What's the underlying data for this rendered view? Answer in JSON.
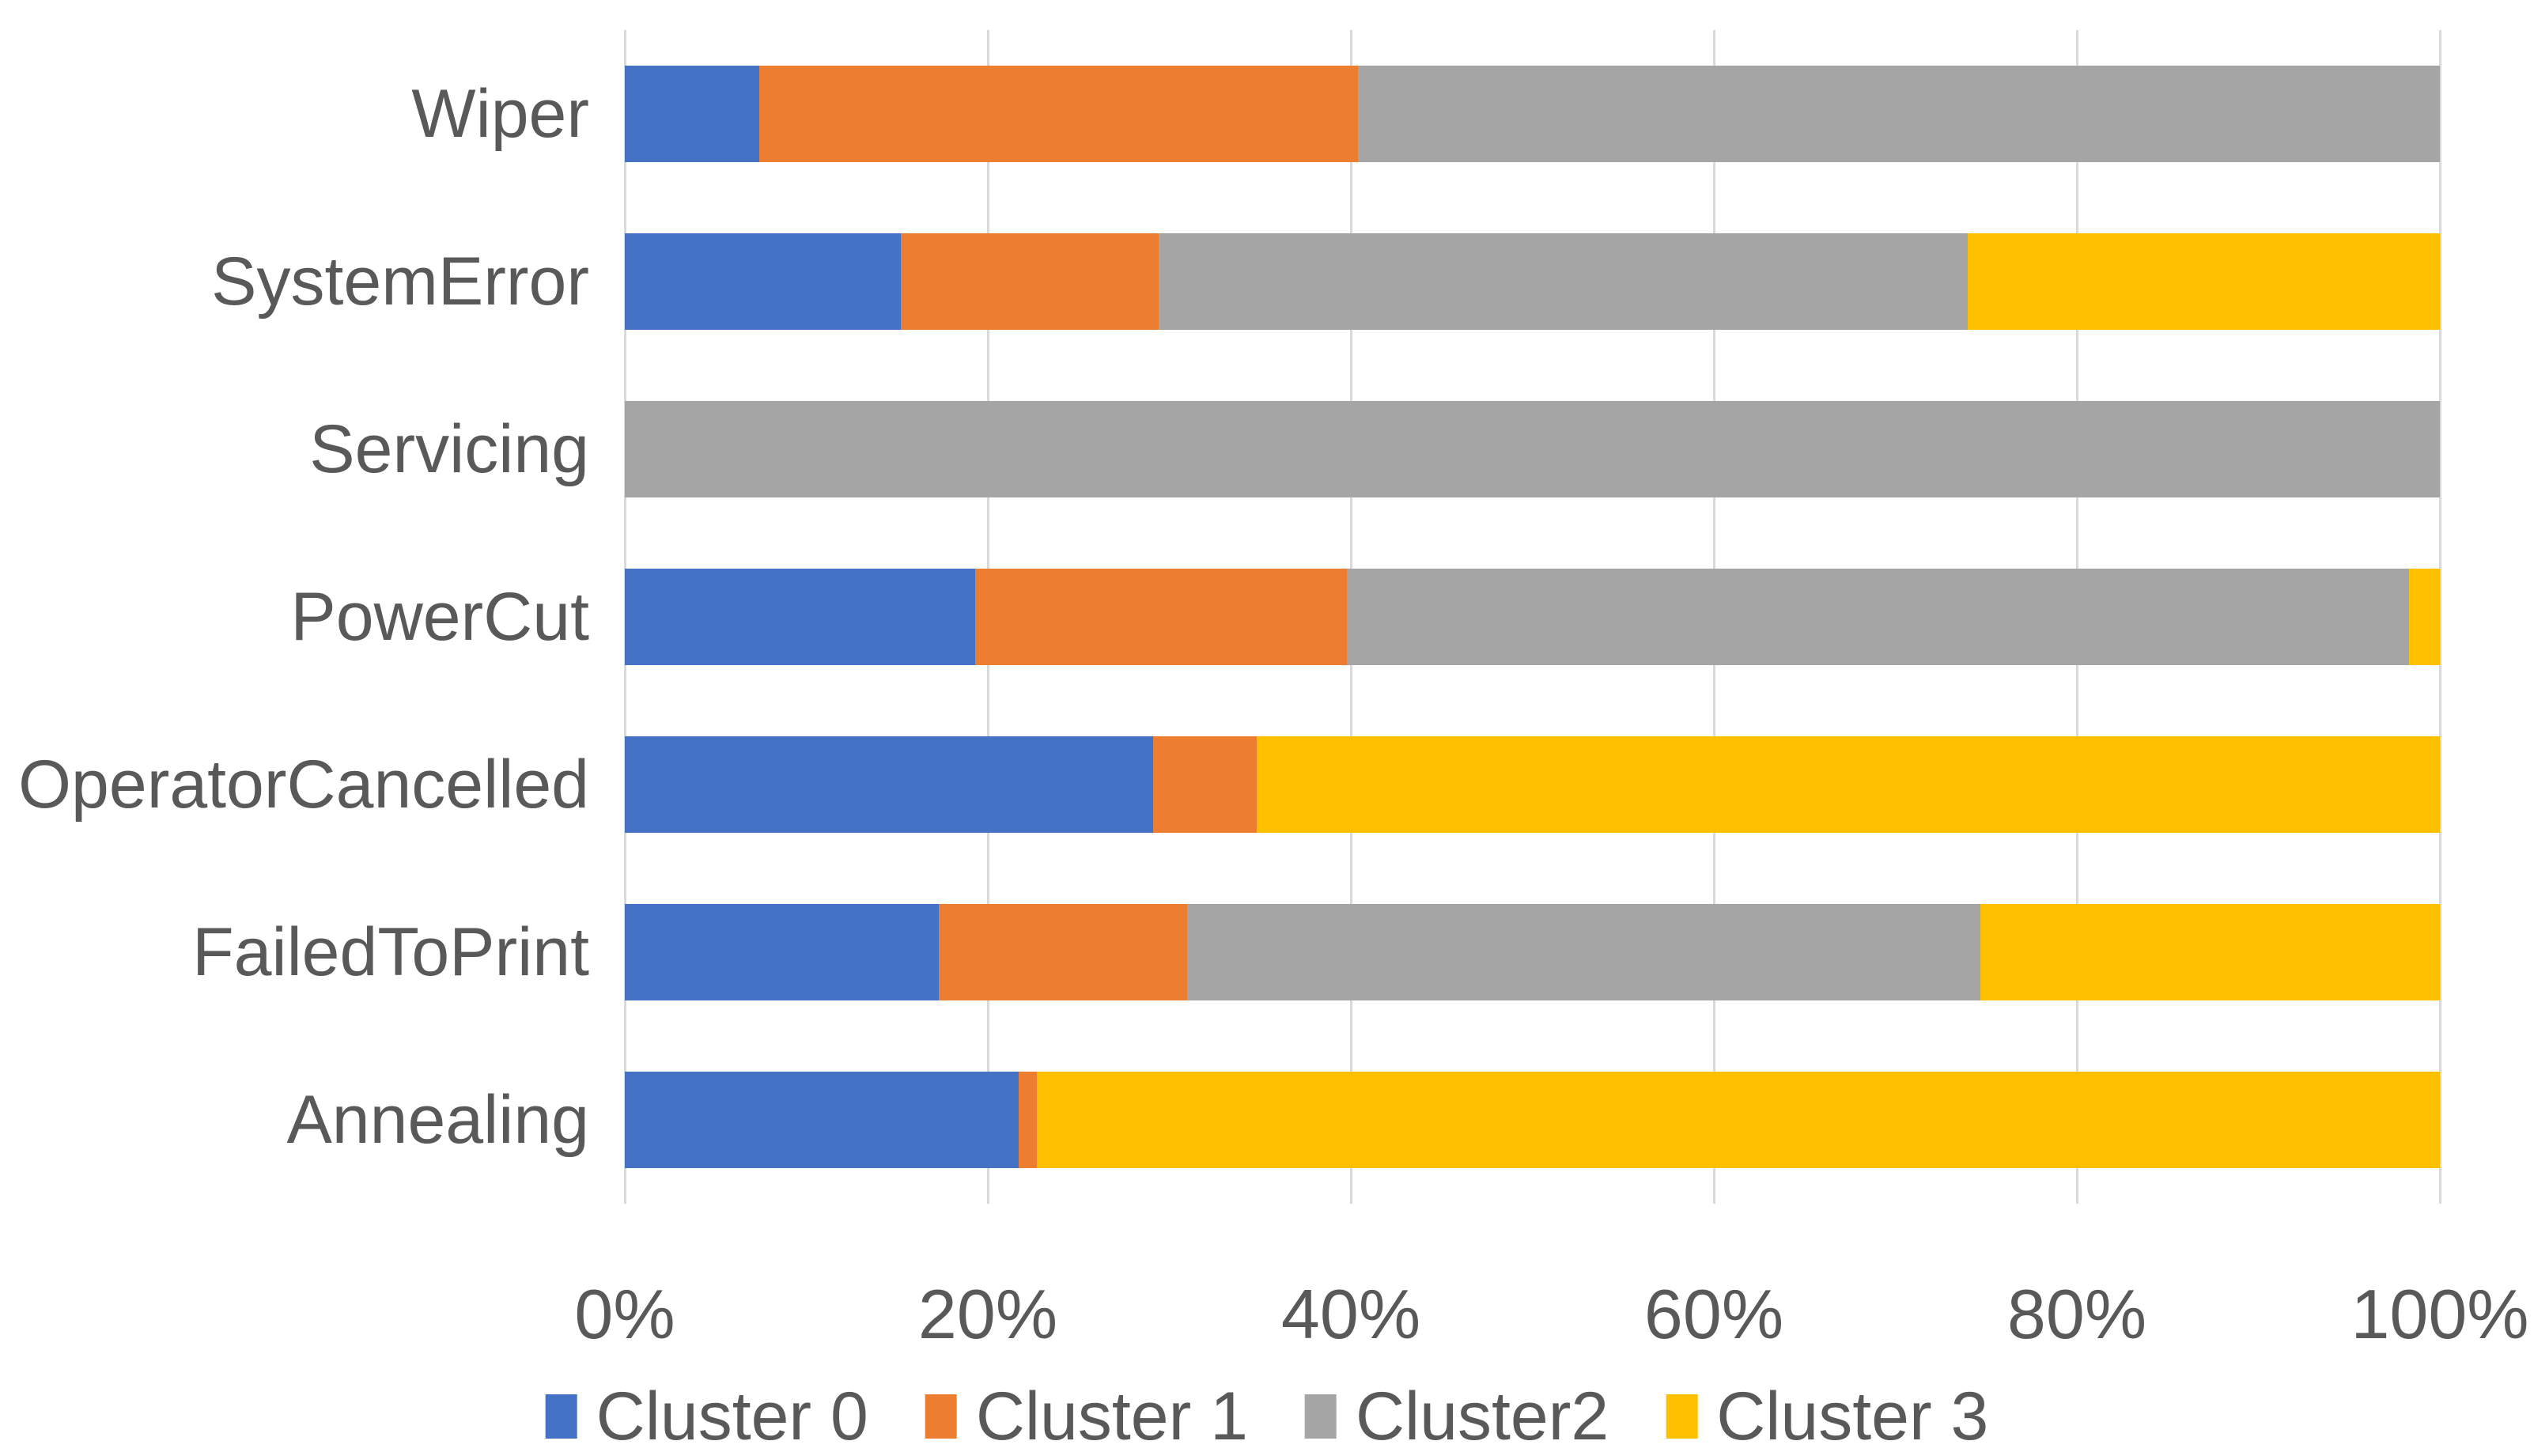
{
  "chart_data": {
    "type": "bar",
    "orientation": "horizontal",
    "stacked": true,
    "unit": "percent",
    "title": "",
    "xlabel": "",
    "ylabel": "",
    "categories": [
      "Wiper",
      "SystemError",
      "Servicing",
      "PowerCut",
      "OperatorCancelled",
      "FailedToPrint",
      "Annealing"
    ],
    "series": [
      {
        "name": "Cluster 0",
        "color": "#4472C4",
        "values": [
          7.4,
          15.2,
          0,
          19.3,
          29.1,
          17.3,
          21.7
        ]
      },
      {
        "name": "Cluster 1",
        "color": "#ED7D31",
        "values": [
          33.0,
          14.2,
          0,
          20.5,
          5.7,
          13.7,
          1.0
        ]
      },
      {
        "name": "Cluster2",
        "color": "#A5A5A5",
        "values": [
          59.6,
          44.6,
          100,
          58.5,
          0,
          43.7,
          0
        ]
      },
      {
        "name": "Cluster 3",
        "color": "#FFC000",
        "values": [
          0,
          26.0,
          0,
          1.7,
          65.2,
          25.3,
          77.3
        ]
      }
    ],
    "x_axis": {
      "min": 0,
      "max": 100,
      "tick_labels": [
        "0%",
        "20%",
        "40%",
        "60%",
        "80%",
        "100%"
      ],
      "tick_values": [
        0,
        20,
        40,
        60,
        80,
        100
      ]
    },
    "legend": {
      "position": "bottom",
      "items": [
        "Cluster 0",
        "Cluster 1",
        "Cluster2",
        "Cluster 3"
      ]
    },
    "grid": "vertical-only",
    "gridline_color": "#D9D9D9",
    "text_color": "#595959",
    "background_color": "#FFFFFF"
  }
}
